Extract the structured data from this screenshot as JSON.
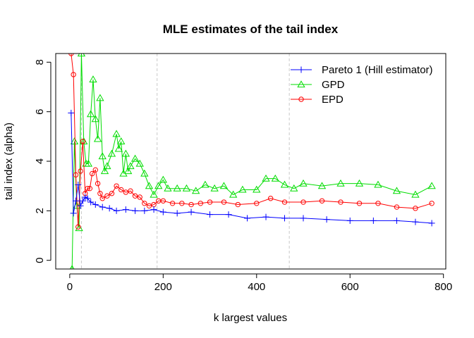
{
  "chart_data": {
    "type": "line",
    "title": "MLE estimates of the tail index",
    "xlabel": "k largest values",
    "ylabel": "tail index (alpha)",
    "xlim": [
      -30,
      805
    ],
    "ylim": [
      -0.35,
      8.35
    ],
    "xticks": [
      0,
      200,
      400,
      600,
      800
    ],
    "yticks": [
      0,
      2,
      4,
      6,
      8
    ],
    "grid": false,
    "legend_position": "top-right",
    "vlines": [
      25,
      187,
      470
    ],
    "series": [
      {
        "name": "Pareto 1 (Hill estimator)",
        "color": "#0000ff",
        "marker": "plus",
        "x": [
          3,
          8,
          13,
          18,
          23,
          28,
          33,
          38,
          45,
          55,
          70,
          85,
          100,
          120,
          140,
          160,
          180,
          200,
          230,
          260,
          300,
          340,
          380,
          420,
          460,
          500,
          550,
          600,
          650,
          700,
          740,
          775
        ],
        "y": [
          5.95,
          1.9,
          2.4,
          3.05,
          2.2,
          2.4,
          2.55,
          2.5,
          2.35,
          2.25,
          2.15,
          2.1,
          2.0,
          2.05,
          2.0,
          2.0,
          2.05,
          1.95,
          1.9,
          1.95,
          1.85,
          1.85,
          1.7,
          1.75,
          1.7,
          1.7,
          1.65,
          1.6,
          1.6,
          1.6,
          1.55,
          1.5
        ]
      },
      {
        "name": "GPD",
        "color": "#00dd00",
        "marker": "triangle",
        "x": [
          5,
          10,
          15,
          20,
          25,
          30,
          35,
          40,
          45,
          50,
          55,
          60,
          65,
          70,
          75,
          80,
          90,
          100,
          105,
          110,
          115,
          120,
          125,
          130,
          140,
          150,
          160,
          170,
          180,
          190,
          200,
          210,
          230,
          250,
          270,
          290,
          310,
          330,
          350,
          370,
          400,
          420,
          440,
          460,
          480,
          500,
          540,
          580,
          620,
          660,
          700,
          740,
          775
        ],
        "y": [
          -0.35,
          4.8,
          2.2,
          1.3,
          8.35,
          4.8,
          3.9,
          3.9,
          5.9,
          7.3,
          5.7,
          4.9,
          6.55,
          4.2,
          3.6,
          3.8,
          4.3,
          5.1,
          4.5,
          4.8,
          3.5,
          4.3,
          3.6,
          3.8,
          4.1,
          3.9,
          3.5,
          3.0,
          2.65,
          3.0,
          3.25,
          2.9,
          2.9,
          2.9,
          2.8,
          3.05,
          2.9,
          3.0,
          2.65,
          2.85,
          2.85,
          3.3,
          3.3,
          3.05,
          2.9,
          3.1,
          3.0,
          3.1,
          3.1,
          3.05,
          2.8,
          2.65,
          3.0
        ]
      },
      {
        "name": "EPD",
        "color": "#ff0000",
        "marker": "circle",
        "x": [
          3,
          8,
          13,
          18,
          23,
          28,
          33,
          38,
          43,
          48,
          55,
          60,
          65,
          70,
          80,
          90,
          100,
          110,
          120,
          130,
          140,
          150,
          160,
          170,
          180,
          190,
          200,
          220,
          240,
          260,
          280,
          300,
          330,
          360,
          400,
          430,
          460,
          500,
          540,
          580,
          620,
          660,
          700,
          740,
          775
        ],
        "y": [
          8.35,
          7.5,
          3.45,
          1.35,
          3.6,
          4.8,
          2.7,
          2.9,
          2.9,
          3.5,
          3.65,
          3.1,
          2.7,
          2.5,
          2.6,
          2.7,
          3.0,
          2.85,
          2.75,
          2.8,
          2.6,
          2.55,
          2.3,
          2.2,
          2.25,
          2.4,
          2.4,
          2.3,
          2.3,
          2.25,
          2.3,
          2.35,
          2.35,
          2.25,
          2.3,
          2.5,
          2.35,
          2.35,
          2.4,
          2.35,
          2.3,
          2.3,
          2.15,
          2.1,
          2.3
        ]
      }
    ]
  }
}
